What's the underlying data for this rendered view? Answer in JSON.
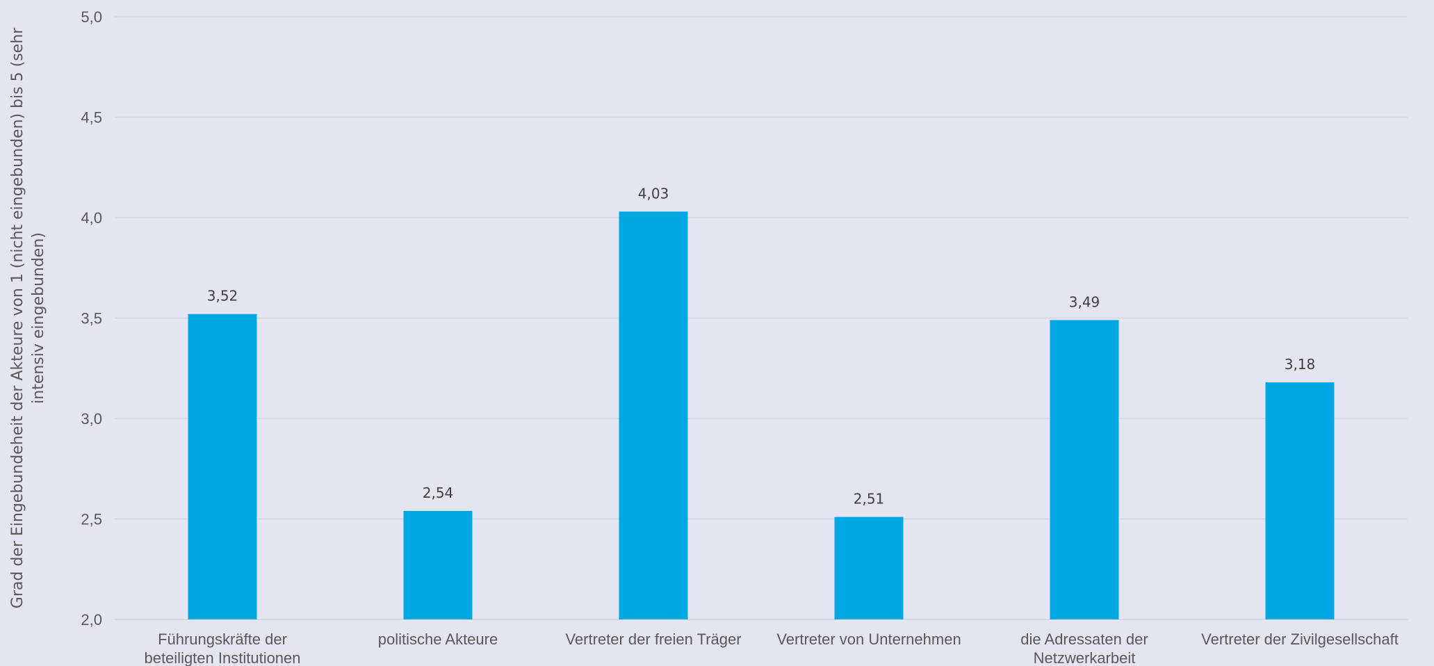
{
  "chart_data": {
    "type": "bar",
    "title": "",
    "xlabel": "",
    "ylabel": "Grad der Eingebundeheit der Akteure von 1 (nicht eingebunden) bis 5 (sehr intensiv eingebunden)",
    "ylabel_lines": [
      "Grad der Eingebundeheit der Akteure von 1 (nicht eingebunden) bis 5 (sehr",
      "intensiv eingebunden)"
    ],
    "ylim": [
      2.0,
      5.0
    ],
    "yticks": [
      "2,0",
      "2,5",
      "3,0",
      "3,5",
      "4,0",
      "4,5",
      "5,0"
    ],
    "grid": true,
    "legend": "none",
    "categories": [
      [
        "Führungskräfte der",
        "beteiligten Institutionen"
      ],
      [
        "politische Akteure"
      ],
      [
        "Vertreter der freien Träger"
      ],
      [
        "Vertreter von Unternehmen"
      ],
      [
        "die Adressaten der",
        "Netzwerkarbeit"
      ],
      [
        "Vertreter der Zivilgesellschaft"
      ]
    ],
    "values": [
      3.52,
      2.54,
      4.03,
      2.51,
      3.49,
      3.18
    ],
    "value_labels": [
      "3,52",
      "2,54",
      "4,03",
      "2,51",
      "3,49",
      "3,18"
    ],
    "bar_color": "#00a8e3"
  }
}
